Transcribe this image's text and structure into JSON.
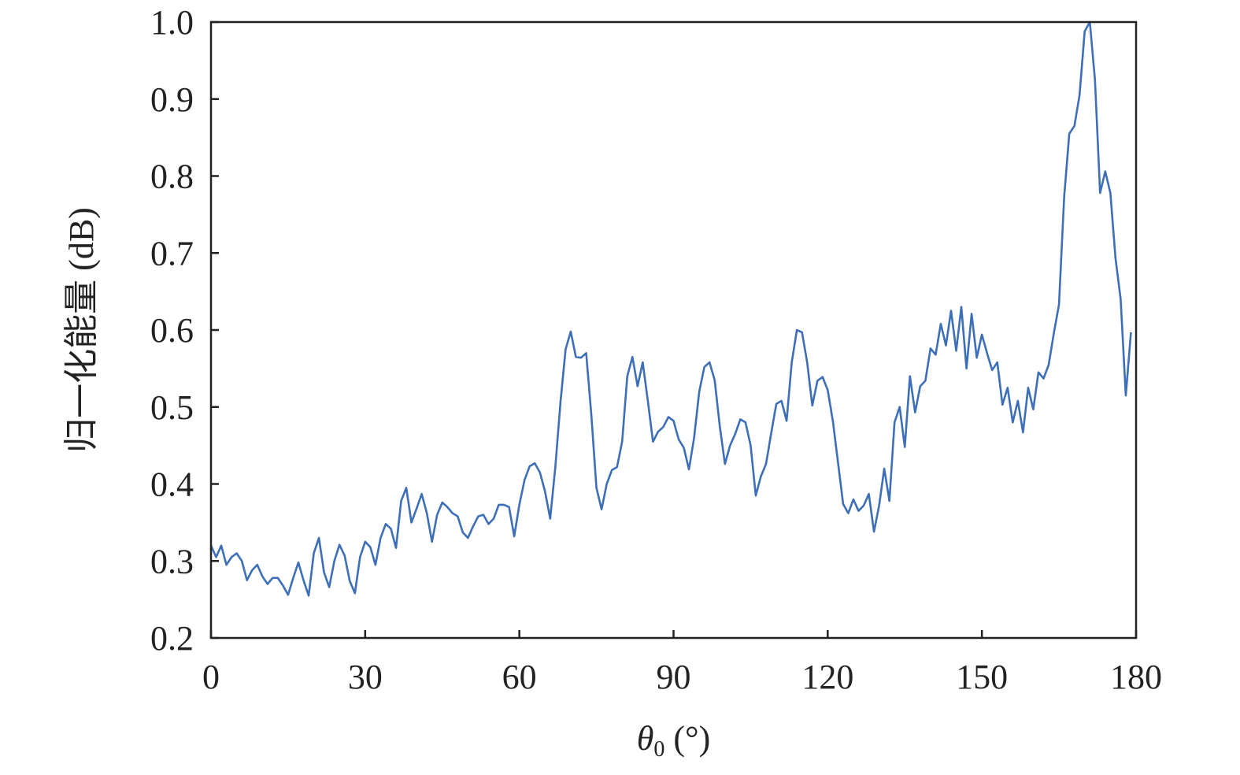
{
  "chart_data": {
    "type": "line",
    "xlabel_symbol": "θ",
    "xlabel_subscript": "0",
    "xlabel_unit": " (°)",
    "ylabel": "归一化能量 (dB)",
    "xlim": [
      0,
      180
    ],
    "ylim": [
      0.2,
      1.0
    ],
    "xticks": [
      0,
      30,
      60,
      90,
      120,
      150,
      180
    ],
    "yticks": [
      "0.2",
      "0.3",
      "0.4",
      "0.5",
      "0.6",
      "0.7",
      "0.8",
      "0.9",
      "1.0"
    ],
    "grid": false,
    "color": "#3d6fb8",
    "series": [
      {
        "x": [
          0,
          1,
          2,
          3,
          4,
          5,
          6,
          7,
          8,
          9,
          10,
          11,
          12,
          13,
          14,
          15,
          16,
          17,
          18,
          19,
          20,
          21,
          22,
          23,
          24,
          25,
          26,
          27,
          28,
          29,
          30,
          31,
          32,
          33,
          34,
          35,
          36,
          37,
          38,
          39,
          40,
          41,
          42,
          43,
          44,
          45,
          46,
          47,
          48,
          49,
          50,
          51,
          52,
          53,
          54,
          55,
          56,
          57,
          58,
          59,
          60,
          61,
          62,
          63,
          64,
          65,
          66,
          67,
          68,
          69,
          70,
          71,
          72,
          73,
          74,
          75,
          76,
          77,
          78,
          79,
          80,
          81,
          82,
          83,
          84,
          85,
          86,
          87,
          88,
          89,
          90,
          91,
          92,
          93,
          94,
          95,
          96,
          97,
          98,
          99,
          100,
          101,
          102,
          103,
          104,
          105,
          106,
          107,
          108,
          109,
          110,
          111,
          112,
          113,
          114,
          115,
          116,
          117,
          118,
          119,
          120,
          121,
          122,
          123,
          124,
          125,
          126,
          127,
          128,
          129,
          130,
          131,
          132,
          133,
          134,
          135,
          136,
          137,
          138,
          139,
          140,
          141,
          142,
          143,
          144,
          145,
          146,
          147,
          148,
          149,
          150,
          151,
          152,
          153,
          154,
          155,
          156,
          157,
          158,
          159,
          160,
          161,
          162,
          163,
          164,
          165,
          166,
          167,
          168,
          169,
          170,
          171,
          172,
          173,
          174,
          175,
          176,
          177,
          178,
          179
        ],
        "values": [
          0.32,
          0.305,
          0.32,
          0.295,
          0.305,
          0.31,
          0.3,
          0.275,
          0.288,
          0.295,
          0.28,
          0.27,
          0.278,
          0.278,
          0.268,
          0.256,
          0.278,
          0.298,
          0.275,
          0.255,
          0.31,
          0.33,
          0.285,
          0.266,
          0.3,
          0.321,
          0.307,
          0.274,
          0.258,
          0.305,
          0.325,
          0.318,
          0.295,
          0.33,
          0.348,
          0.342,
          0.317,
          0.378,
          0.395,
          0.35,
          0.368,
          0.387,
          0.362,
          0.325,
          0.36,
          0.376,
          0.37,
          0.362,
          0.358,
          0.337,
          0.33,
          0.345,
          0.358,
          0.36,
          0.348,
          0.355,
          0.373,
          0.373,
          0.37,
          0.332,
          0.373,
          0.405,
          0.423,
          0.427,
          0.415,
          0.39,
          0.355,
          0.422,
          0.506,
          0.575,
          0.598,
          0.565,
          0.564,
          0.57,
          0.49,
          0.395,
          0.367,
          0.4,
          0.418,
          0.422,
          0.455,
          0.54,
          0.565,
          0.527,
          0.558,
          0.508,
          0.455,
          0.468,
          0.474,
          0.487,
          0.482,
          0.458,
          0.447,
          0.419,
          0.46,
          0.52,
          0.552,
          0.558,
          0.535,
          0.475,
          0.426,
          0.45,
          0.465,
          0.484,
          0.48,
          0.45,
          0.385,
          0.41,
          0.426,
          0.466,
          0.504,
          0.508,
          0.482,
          0.558,
          0.6,
          0.597,
          0.558,
          0.502,
          0.534,
          0.539,
          0.522,
          0.482,
          0.428,
          0.374,
          0.362,
          0.38,
          0.365,
          0.372,
          0.387,
          0.338,
          0.372,
          0.42,
          0.378,
          0.48,
          0.5,
          0.448,
          0.54,
          0.493,
          0.527,
          0.534,
          0.576,
          0.568,
          0.608,
          0.58,
          0.625,
          0.573,
          0.63,
          0.55,
          0.621,
          0.564,
          0.594,
          0.57,
          0.548,
          0.558,
          0.503,
          0.525,
          0.48,
          0.508,
          0.467,
          0.525,
          0.497,
          0.545,
          0.537,
          0.555,
          0.596,
          0.633,
          0.772,
          0.855,
          0.865,
          0.905,
          0.988,
          1.0,
          0.925,
          0.778,
          0.806,
          0.778,
          0.693,
          0.64,
          0.515,
          0.597
        ]
      }
    ]
  }
}
